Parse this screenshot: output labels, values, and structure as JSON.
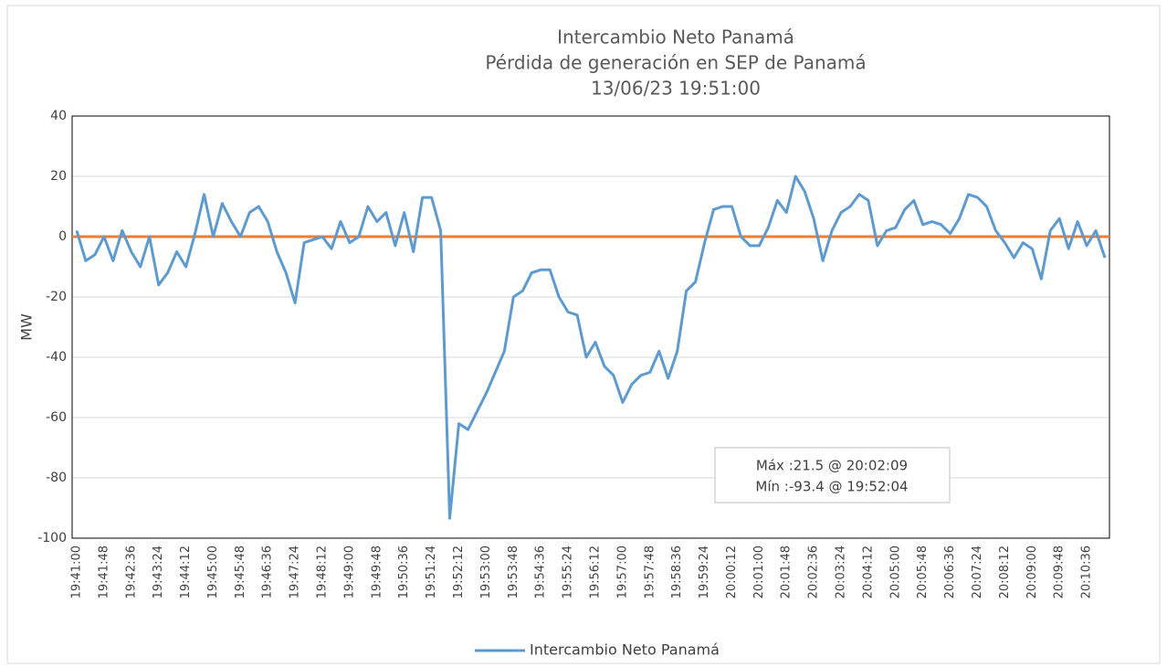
{
  "chart_data": {
    "type": "line",
    "title": "Intercambio Neto Panamá",
    "subtitle": [
      "Pérdida de generación en SEP de Panamá",
      "13/06/23 19:51:00"
    ],
    "y_label": "MW",
    "categories": [
      "19:41:00",
      null,
      null,
      "19:41:48",
      null,
      null,
      "19:42:36",
      null,
      null,
      "19:43:24",
      null,
      null,
      "19:44:12",
      null,
      null,
      "19:45:00",
      null,
      null,
      "19:45:48",
      null,
      null,
      "19:46:36",
      null,
      null,
      "19:47:24",
      null,
      null,
      "19:48:12",
      null,
      null,
      "19:49:00",
      null,
      null,
      "19:49:48",
      null,
      null,
      "19:50:36",
      null,
      null,
      "19:51:24",
      null,
      null,
      "19:52:12",
      null,
      null,
      "19:53:00",
      null,
      null,
      "19:53:48",
      null,
      null,
      "19:54:36",
      null,
      null,
      "19:55:24",
      null,
      null,
      "19:56:12",
      null,
      null,
      "19:57:00",
      null,
      null,
      "19:57:48",
      null,
      null,
      "19:58:36",
      null,
      null,
      "19:59:24",
      null,
      null,
      "20:00:12",
      null,
      null,
      "20:01:00",
      null,
      null,
      "20:01:48",
      null,
      null,
      "20:02:36",
      null,
      null,
      "20:03:24",
      null,
      null,
      "20:04:12",
      null,
      null,
      "20:05:00",
      null,
      null,
      "20:05:48",
      null,
      null,
      "20:06:36",
      null,
      null,
      "20:07:24",
      null,
      null,
      "20:08:12",
      null,
      null,
      "20:09:00",
      null,
      null,
      "20:09:48",
      null,
      null,
      "20:10:36",
      null,
      null
    ],
    "series": [
      {
        "name": "Intercambio Neto Panamá",
        "color": "#5b9bd5",
        "values": [
          2,
          -8,
          -6,
          0,
          -8,
          2,
          -5,
          -10,
          0,
          -16,
          -12,
          -5,
          -10,
          1,
          14,
          0,
          11,
          5,
          0,
          8,
          10,
          5,
          -5,
          -12,
          -22,
          -2,
          -1,
          0,
          -4,
          5,
          -2,
          0,
          10,
          5,
          8,
          -3,
          8,
          -5,
          13,
          13,
          2,
          -93.4,
          -62,
          -64,
          -58,
          -52,
          -45,
          -38,
          -20,
          -18,
          -12,
          -11,
          -11,
          -20,
          -25,
          -26,
          -40,
          -35,
          -43,
          -46,
          -55,
          -49,
          -46,
          -45,
          -38,
          -47,
          -38,
          -18,
          -15,
          -2,
          9,
          10,
          10,
          0,
          -3,
          -3,
          3,
          12,
          8,
          20,
          15,
          6,
          -8,
          2,
          8,
          10,
          14,
          12,
          -3,
          2,
          3,
          9,
          12,
          4,
          5,
          4,
          1,
          6,
          14,
          13,
          10,
          2,
          -2,
          -7,
          -2,
          -4,
          -14,
          2,
          6,
          -4,
          5,
          -3,
          2,
          -7
        ]
      }
    ],
    "reference_line": {
      "value": 0,
      "color": "#ed7d31"
    },
    "ylim": [
      -100,
      40
    ],
    "yticks": [
      -100,
      -80,
      -60,
      -40,
      -20,
      0,
      20,
      40
    ],
    "grid": true,
    "legend": "bottom",
    "annotations": [
      "Máx :21.5 @ 20:02:09",
      "Mín :-93.4 @ 19:52:04"
    ]
  }
}
